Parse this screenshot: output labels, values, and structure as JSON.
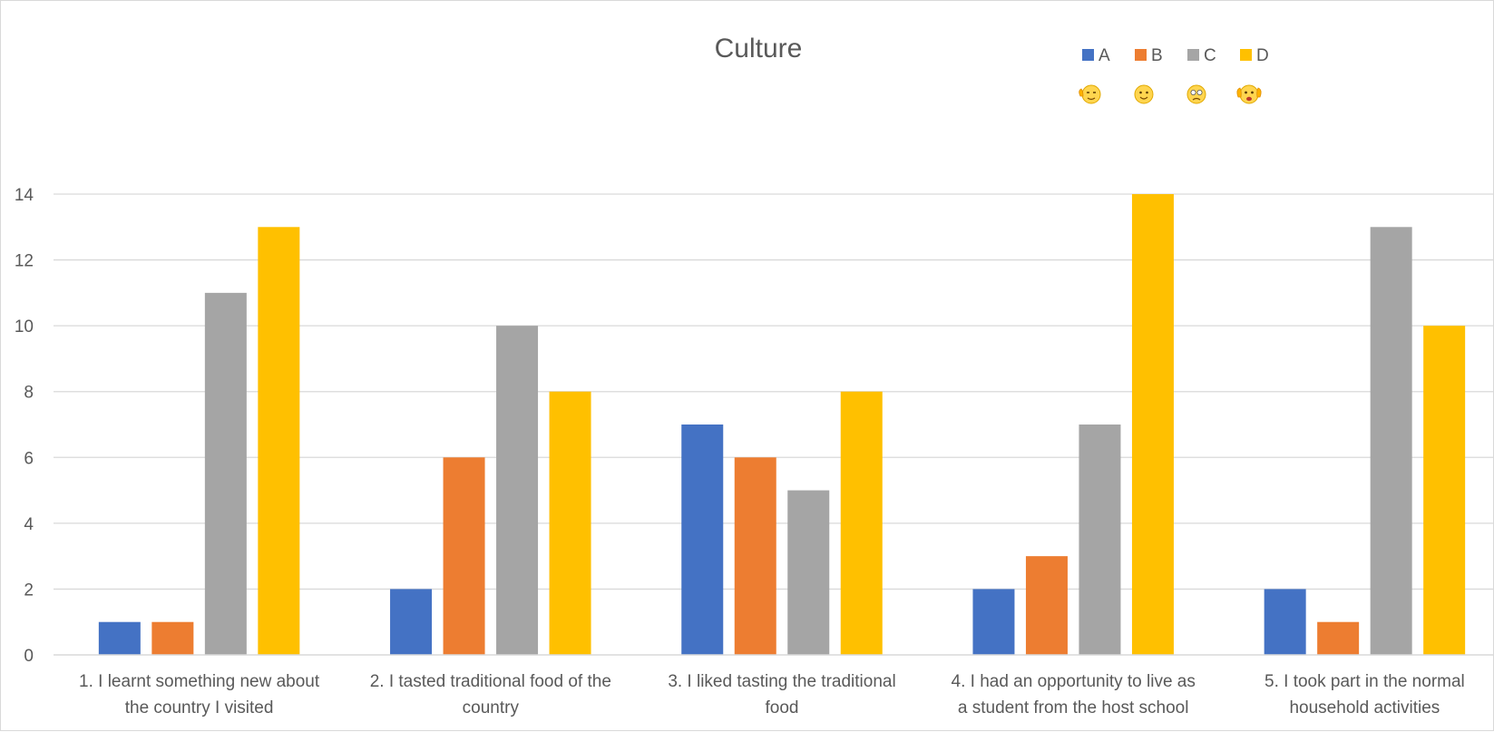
{
  "chart_data": {
    "type": "bar",
    "title": "Culture",
    "categories": [
      [
        "1. I learnt something new about",
        "the country I visited"
      ],
      [
        "2. I tasted traditional food of the",
        "country"
      ],
      [
        "3. I liked tasting the traditional",
        "food"
      ],
      [
        "4. I had an opportunity to live as",
        "a student from the host school"
      ],
      [
        "5. I took part in the normal",
        "household activities"
      ]
    ],
    "series": [
      {
        "name": "A",
        "color": "#4472C4",
        "icon": "hand-wave-face-icon",
        "values": [
          1,
          2,
          7,
          2,
          2
        ]
      },
      {
        "name": "B",
        "color": "#ED7D31",
        "icon": "smiling-face-icon",
        "values": [
          1,
          6,
          6,
          3,
          1
        ]
      },
      {
        "name": "C",
        "color": "#A5A5A5",
        "icon": "worried-face-icon",
        "values": [
          11,
          10,
          5,
          7,
          13
        ]
      },
      {
        "name": "D",
        "color": "#FFC000",
        "icon": "cheering-face-icon",
        "values": [
          13,
          8,
          8,
          14,
          10
        ]
      }
    ],
    "ylim": [
      0,
      14
    ],
    "yticks": [
      0,
      2,
      4,
      6,
      8,
      10,
      12,
      14
    ],
    "grid": true,
    "legend_position": "top-right"
  }
}
